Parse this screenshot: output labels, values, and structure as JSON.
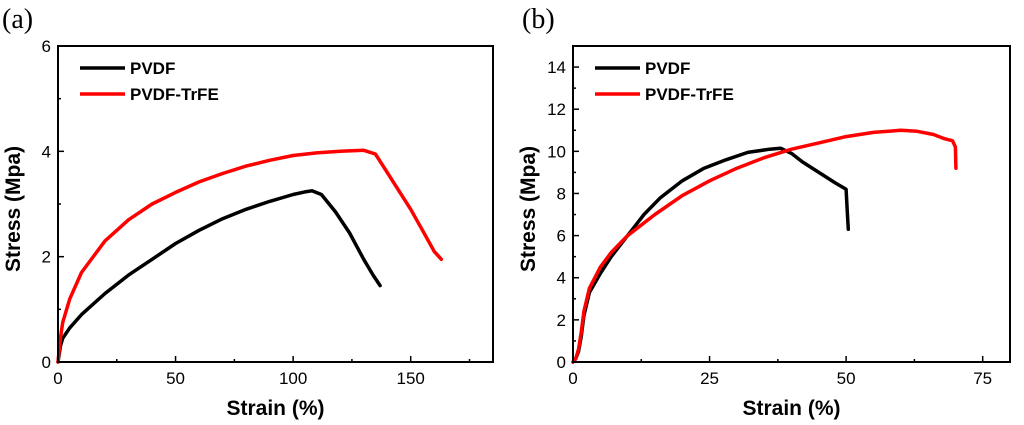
{
  "chart_data": [
    {
      "type": "line",
      "panel_label": "(a)",
      "xlabel": "Strain (%)",
      "ylabel": "Stress (Mpa)",
      "xlim": [
        0,
        185
      ],
      "ylim": [
        0,
        6
      ],
      "xticks": [
        0,
        50,
        100,
        150
      ],
      "yticks": [
        0,
        2,
        4,
        6
      ],
      "legend_position": "top-left",
      "series": [
        {
          "name": "PVDF",
          "color": "#000000",
          "x": [
            0,
            1,
            2,
            5,
            10,
            20,
            30,
            40,
            50,
            60,
            70,
            80,
            90,
            100,
            105,
            108,
            112,
            118,
            124,
            130,
            134,
            137
          ],
          "y": [
            0,
            0.3,
            0.45,
            0.65,
            0.9,
            1.3,
            1.65,
            1.95,
            2.25,
            2.5,
            2.72,
            2.9,
            3.05,
            3.18,
            3.23,
            3.25,
            3.18,
            2.85,
            2.45,
            1.95,
            1.65,
            1.45
          ]
        },
        {
          "name": "PVDF-TrFE",
          "color": "#ff0000",
          "x": [
            0,
            1,
            2,
            5,
            10,
            20,
            30,
            40,
            50,
            60,
            70,
            80,
            90,
            100,
            110,
            120,
            130,
            135,
            140,
            145,
            150,
            155,
            160,
            163
          ],
          "y": [
            0,
            0.45,
            0.75,
            1.2,
            1.7,
            2.3,
            2.7,
            3.0,
            3.22,
            3.42,
            3.58,
            3.72,
            3.83,
            3.92,
            3.97,
            4.0,
            4.02,
            3.95,
            3.6,
            3.25,
            2.9,
            2.5,
            2.1,
            1.95
          ]
        }
      ]
    },
    {
      "type": "line",
      "panel_label": "(b)",
      "xlabel": "Strain (%)",
      "ylabel": "Stress (Mpa)",
      "xlim": [
        0,
        80
      ],
      "ylim": [
        0,
        15
      ],
      "xticks": [
        0,
        25,
        50,
        75
      ],
      "yticks": [
        0,
        2,
        4,
        6,
        8,
        10,
        12,
        14
      ],
      "legend_position": "top-left",
      "series": [
        {
          "name": "PVDF",
          "color": "#000000",
          "x": [
            0,
            0.5,
            1,
            1.5,
            2,
            3,
            5,
            7,
            10,
            13,
            16,
            20,
            24,
            28,
            32,
            36,
            38,
            40,
            42,
            45,
            48,
            50,
            50.2,
            50.4
          ],
          "y": [
            0,
            0.15,
            0.5,
            1.2,
            2.2,
            3.3,
            4.2,
            5.0,
            6.0,
            7.0,
            7.8,
            8.6,
            9.2,
            9.6,
            9.95,
            10.1,
            10.15,
            9.9,
            9.5,
            9.0,
            8.5,
            8.2,
            7.2,
            6.3
          ]
        },
        {
          "name": "PVDF-TrFE",
          "color": "#ff0000",
          "x": [
            0,
            0.5,
            1,
            1.5,
            2,
            3,
            5,
            7,
            10,
            15,
            20,
            25,
            30,
            35,
            40,
            45,
            50,
            55,
            60,
            63,
            66,
            68,
            69.5,
            70,
            70.1
          ],
          "y": [
            0,
            0.15,
            0.6,
            1.4,
            2.4,
            3.5,
            4.5,
            5.2,
            6.0,
            7.0,
            7.9,
            8.6,
            9.2,
            9.7,
            10.1,
            10.4,
            10.7,
            10.9,
            11.0,
            10.95,
            10.8,
            10.6,
            10.5,
            10.2,
            9.2
          ]
        }
      ]
    }
  ]
}
